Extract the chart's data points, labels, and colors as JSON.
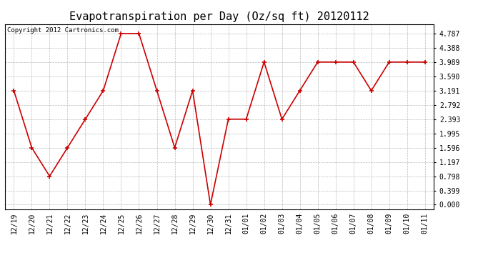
{
  "title": "Evapotranspiration per Day (Oz/sq ft) 20120112",
  "copyright_text": "Copyright 2012 Cartronics.com",
  "x_labels": [
    "12/19",
    "12/20",
    "12/21",
    "12/22",
    "12/23",
    "12/24",
    "12/25",
    "12/26",
    "12/27",
    "12/28",
    "12/29",
    "12/30",
    "12/31",
    "01/01",
    "01/02",
    "01/03",
    "01/04",
    "01/05",
    "01/06",
    "01/07",
    "01/08",
    "01/09",
    "01/10",
    "01/11"
  ],
  "y_values": [
    3.191,
    1.596,
    0.798,
    1.596,
    2.393,
    3.191,
    4.787,
    4.787,
    3.191,
    1.596,
    3.191,
    0.0,
    2.393,
    2.393,
    3.989,
    2.393,
    3.191,
    3.989,
    3.989,
    3.989,
    3.191,
    3.989,
    3.989,
    3.989
  ],
  "yticks": [
    0.0,
    0.399,
    0.798,
    1.197,
    1.596,
    1.995,
    2.393,
    2.792,
    3.191,
    3.59,
    3.989,
    4.388,
    4.787
  ],
  "line_color": "#cc0000",
  "marker_color": "#cc0000",
  "bg_color": "#ffffff",
  "grid_color": "#bbbbbb",
  "title_fontsize": 11,
  "copyright_fontsize": 6.5,
  "tick_fontsize": 7,
  "ylim_min": -0.12,
  "ylim_max": 5.05
}
